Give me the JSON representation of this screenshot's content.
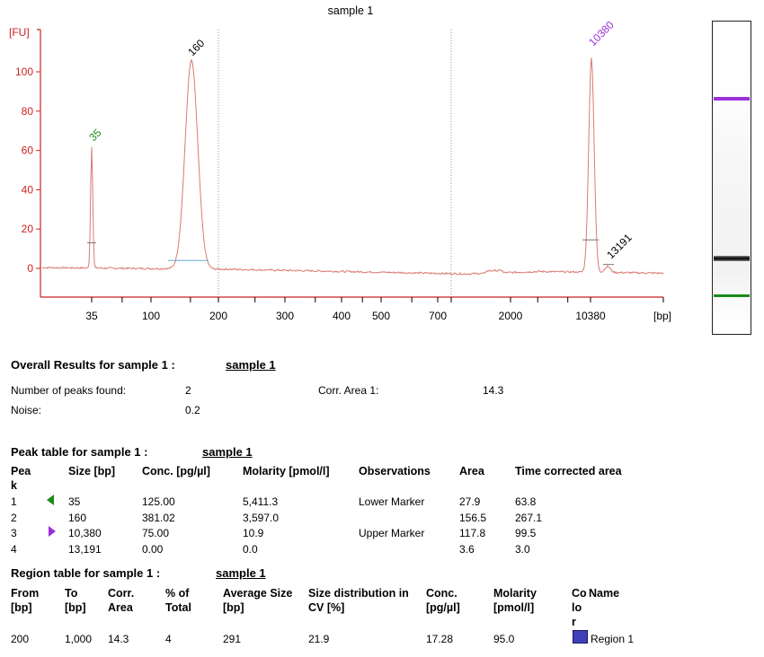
{
  "chart_data": {
    "type": "line",
    "title": "sample 1",
    "ylabel": "[FU]",
    "xlabel": "[bp]",
    "ylim": [
      -15,
      122
    ],
    "yticks": [
      0,
      20,
      40,
      60,
      80,
      100
    ],
    "x_tick_labels": [
      "35",
      "100",
      "200",
      "300",
      "400",
      "500",
      "700",
      "2000",
      "10380"
    ],
    "grid": false,
    "colors": {
      "axis": "#cc2222",
      "trace": "#d97a72",
      "green": "#1a8a1a",
      "purple": "#9b30d9"
    },
    "peaks": [
      {
        "label": "35",
        "size": 35,
        "height": 62,
        "color": "#1a8a1a"
      },
      {
        "label": "160",
        "size": 160,
        "height": 106,
        "color": "#000000"
      },
      {
        "label": "10380",
        "size": 10380,
        "height": 109,
        "color": "#9b30d9"
      },
      {
        "label": "13191",
        "size": 13191,
        "height": 3,
        "color": "#000000"
      }
    ]
  },
  "gel": {
    "bands": [
      {
        "name": "upper-marker-band",
        "color": "#9b30d9"
      },
      {
        "name": "sample-band",
        "color": "#111111"
      },
      {
        "name": "lower-marker-band",
        "color": "#1a8a1a"
      }
    ]
  },
  "overall": {
    "title": "Overall Results for sample 1  :",
    "link": "sample 1",
    "peaks_label": "Number of peaks found:",
    "peaks_value": "2",
    "corr_label": "Corr. Area 1:",
    "corr_value": "14.3",
    "noise_label": "Noise:",
    "noise_value": "0.2"
  },
  "peak_table": {
    "title": "Peak table for sample 1  :",
    "link": "sample 1",
    "headers": [
      "Pea\nk",
      "Size [bp]",
      "Conc. [pg/µl]",
      "Molarity [pmol/l]",
      "Observations",
      "Area",
      "Time corrected area"
    ],
    "rows": [
      [
        "1",
        "35",
        "125.00",
        "5,411.3",
        "Lower Marker",
        "27.9",
        "63.8"
      ],
      [
        "2",
        "160",
        "381.02",
        "3,597.0",
        "",
        "156.5",
        "267.1"
      ],
      [
        "3",
        "10,380",
        "75.00",
        "10.9",
        "Upper Marker",
        "117.8",
        "99.5"
      ],
      [
        "4",
        "13,191",
        "0.00",
        "0.0",
        "",
        "3.6",
        "3.0"
      ]
    ]
  },
  "region_table": {
    "title": "Region table for sample 1  :",
    "link": "sample 1",
    "headers": [
      "From\n[bp]",
      "To\n[bp]",
      "Corr.\nArea",
      "% of\nTotal",
      "Average Size\n[bp]",
      "Size distribution in\nCV [%]",
      "Conc.\n[pg/µl]",
      "Molarity\n[pmol/l]",
      "Co\nlo\nr",
      "Name"
    ],
    "rows": [
      [
        "200",
        "1,000",
        "14.3",
        "4",
        "291",
        "21.9",
        "17.28",
        "95.0",
        "",
        "Region 1"
      ]
    ],
    "swatch_color": "#4040b8"
  }
}
